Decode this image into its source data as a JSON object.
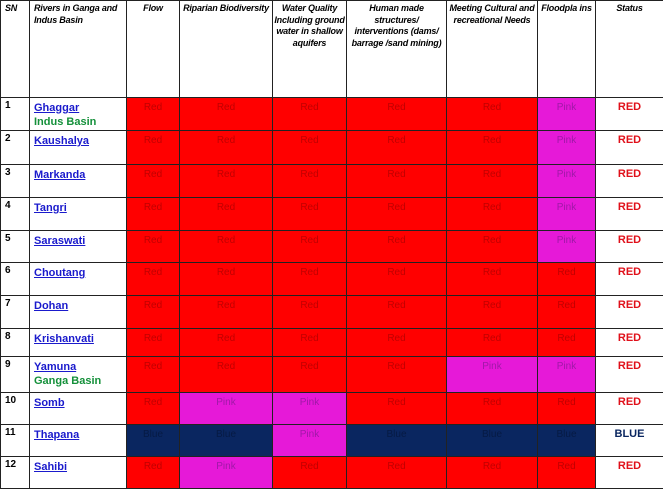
{
  "table": {
    "headers": [
      "SN",
      "Rivers in Ganga and Indus Basin",
      "Flow",
      "Riparian Biodiversity",
      "Water Quality Including ground water in shallow aquifers",
      "Human made structures/ interventions (dams/ barrage /sand mining)",
      "Meeting Cultural and recreational Needs",
      "Floodpla ins",
      "Status"
    ],
    "colors": {
      "red": "#ff0000",
      "pink": "#e619d8",
      "blue": "#0a2660",
      "status_red": "#e0101a",
      "status_blue": "#0a2660",
      "river_link": "#1a1acc",
      "basin_label": "#14903a"
    },
    "rows": [
      {
        "sn": "1",
        "river": "Ghaggar",
        "basin": "Indus Basin",
        "cells": [
          "Red",
          "Red",
          "Red",
          "Red",
          "Red",
          "Pink"
        ],
        "status": "RED"
      },
      {
        "sn": "2",
        "river": "Kaushalya",
        "basin": "",
        "cells": [
          "Red",
          "Red",
          "Red",
          "Red",
          "Red",
          "Pink"
        ],
        "status": "RED"
      },
      {
        "sn": "3",
        "river": "Markanda",
        "basin": "",
        "cells": [
          "Red",
          "Red",
          "Red",
          "Red",
          "Red",
          "Pink"
        ],
        "status": "RED"
      },
      {
        "sn": "4",
        "river": "Tangri",
        "basin": "",
        "cells": [
          "Red",
          "Red",
          "Red",
          "Red",
          "Red",
          "Pink"
        ],
        "status": "RED"
      },
      {
        "sn": "5",
        "river": "Saraswati",
        "basin": "",
        "cells": [
          "Red",
          "Red",
          "Red",
          "Red",
          "Red",
          "Pink"
        ],
        "status": "RED"
      },
      {
        "sn": "6",
        "river": "Choutang",
        "basin": "",
        "cells": [
          "Red",
          "Red",
          "Red",
          "Red",
          "Red",
          "Red"
        ],
        "status": "RED"
      },
      {
        "sn": "7",
        "river": "Dohan",
        "basin": "",
        "cells": [
          "Red",
          "Red",
          "Red",
          "Red",
          "Red",
          "Red"
        ],
        "status": "RED"
      },
      {
        "sn": "8",
        "river": "Krishanvati",
        "basin": "",
        "cells": [
          "Red",
          "Red",
          "Red",
          "Red",
          "Red",
          "Red"
        ],
        "status": "RED"
      },
      {
        "sn": "9",
        "river": "Yamuna",
        "basin": "Ganga Basin",
        "cells": [
          "Red",
          "Red",
          "Red",
          "Red",
          "Pink",
          "Pink"
        ],
        "status": "RED"
      },
      {
        "sn": "10",
        "river": "Somb",
        "basin": "",
        "cells": [
          "Red",
          "Pink",
          "Pink",
          "Red",
          "Red",
          "Red"
        ],
        "status": "RED"
      },
      {
        "sn": "11",
        "river": "Thapana",
        "basin": "",
        "cells": [
          "Blue",
          "Blue",
          "Pink",
          "Blue",
          "Blue",
          "Blue"
        ],
        "status": "BLUE"
      },
      {
        "sn": "12",
        "river": "Sahibi",
        "basin": "",
        "cells": [
          "Red",
          "Pink",
          "Red",
          "Red",
          "Red",
          "Red"
        ],
        "status": "RED"
      }
    ]
  }
}
